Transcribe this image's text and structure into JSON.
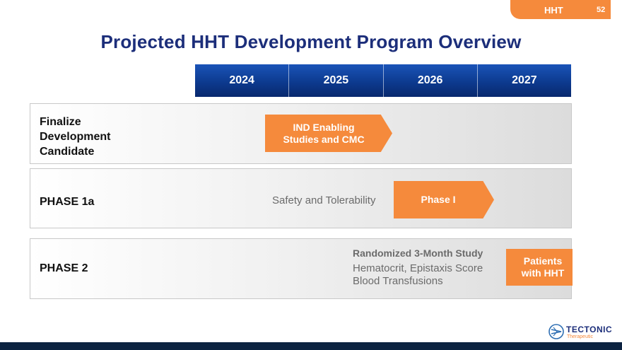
{
  "header": {
    "tag_label": "HHT",
    "page_number": "52",
    "title": "Projected HHT Development Program Overview"
  },
  "timeline": {
    "years": [
      "2024",
      "2025",
      "2026",
      "2027"
    ]
  },
  "rows": [
    {
      "label_lines": [
        "Finalize",
        "Development",
        "Candidate"
      ],
      "arrow_lines": [
        "IND Enabling",
        "Studies and CMC"
      ]
    },
    {
      "label_lines": [
        "PHASE 1a"
      ],
      "note": "Safety and Tolerability",
      "arrow_lines": [
        "Phase I"
      ]
    },
    {
      "label_lines": [
        "PHASE 2"
      ],
      "study_heading": "Randomized 3-Month Study",
      "study_lines": [
        "Hematocrit, Epistaxis Score",
        "Blood Transfusions"
      ],
      "box_lines": [
        "Patients",
        "with HHT"
      ]
    }
  ],
  "colors": {
    "accent_orange": "#f58a3c",
    "title_navy": "#1c2e7a",
    "year_bar_blue": "#0d3a8f",
    "footer_navy": "#0c2341"
  },
  "logo": {
    "icon": "tectonic-logo-icon",
    "name": "TECTONIC",
    "subtitle": "Therapeutic"
  }
}
